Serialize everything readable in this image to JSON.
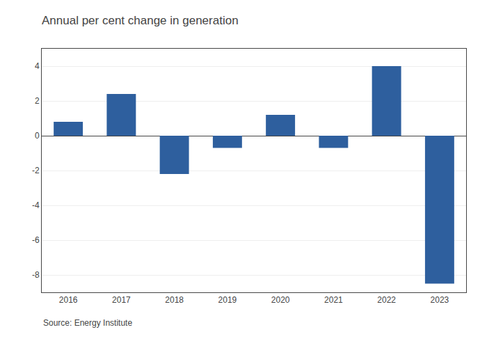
{
  "chart_data": {
    "type": "bar",
    "title": "Annual per cent change in generation",
    "categories": [
      "2016",
      "2017",
      "2018",
      "2019",
      "2020",
      "2021",
      "2022",
      "2023"
    ],
    "values": [
      0.8,
      2.4,
      -2.2,
      -0.7,
      1.2,
      -0.7,
      4.0,
      -8.5
    ],
    "color": "#2e5f9e",
    "ylim": [
      -9,
      5
    ],
    "yticks": [
      -8,
      -6,
      -4,
      -2,
      0,
      2,
      4
    ],
    "grid": true,
    "annotations": [
      "Source: Energy Institute"
    ]
  }
}
